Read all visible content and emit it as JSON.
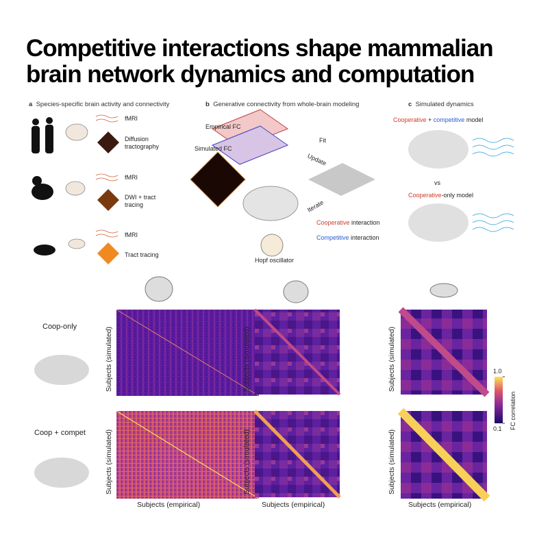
{
  "title": "Competitive interactions shape mammalian brain network dynamics and computation",
  "panel_a": {
    "label": "a",
    "title": "Species-specific brain activity and connectivity",
    "species": [
      {
        "items": [
          "fMRI",
          "Diffusion tractography"
        ]
      },
      {
        "items": [
          "fMRI",
          "DWI + tract tracing"
        ]
      },
      {
        "items": [
          "fMRI",
          "Tract tracing"
        ]
      }
    ]
  },
  "panel_b": {
    "label": "b",
    "title": "Generative connectivity from whole-brain modeling",
    "empirical_fc": "Empirical FC",
    "simulated_fc": "Simulated FC",
    "fit": "Fit",
    "update": "Update",
    "iterate": "Iterate",
    "legend": [
      {
        "kind": "Cooperative",
        "rest": " interaction"
      },
      {
        "kind": "Competitive",
        "rest": " interaction"
      }
    ],
    "oscillator": "Hopf oscillator"
  },
  "panel_c": {
    "label": "c",
    "title": "Simulated dynamics",
    "model_1": [
      "Cooperative",
      " + ",
      "competitive",
      " model"
    ],
    "vs": "vs",
    "model_2": [
      "Cooperative",
      "-only model"
    ]
  },
  "results": {
    "rows": [
      "Coop-only",
      "Coop + compet"
    ],
    "y_axis_label": "Subjects (simulated)",
    "x_axis_label": "Subjects (empirical)",
    "colorbar": {
      "label": "FC correlation",
      "ticks": [
        {
          "value": 1.0,
          "label": "1.0"
        },
        0.1
      ]
    }
  }
}
